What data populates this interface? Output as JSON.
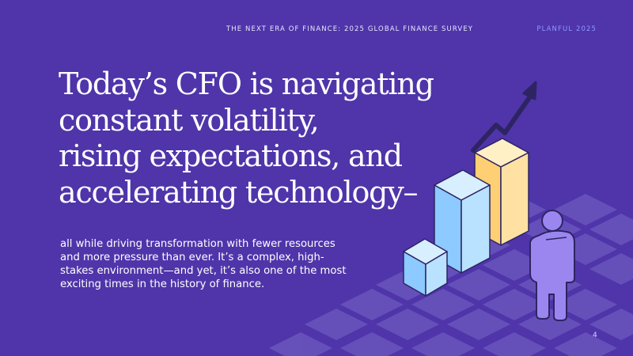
{
  "header": {
    "title": "THE NEXT ERA OF FINANCE: 2025 GLOBAL FINANCE SURVEY",
    "brand": "PLANFUL 2025"
  },
  "headline": {
    "lines": [
      "Today’s CFO is navigating",
      "constant volatility,",
      "rising expectations, and",
      "accelerating technology–"
    ]
  },
  "body": {
    "lines": [
      "all while driving transformation with fewer resources",
      "and more pressure than ever. It’s a complex, high-",
      "stakes environment—and yet, it’s also one of the most",
      "exciting times in the history of finance."
    ]
  },
  "page_number": "4",
  "colors": {
    "background": "#4f35a9",
    "tile": "#6a55bd",
    "bar_blue": "#a9d8ff",
    "bar_yellow": "#ffd98a",
    "person": "#9b86f0",
    "arrow": "#2e2463",
    "brand": "#8f97ff"
  },
  "icons": [
    "bar-chart-illustration",
    "trend-arrow-icon",
    "person-figure-icon"
  ]
}
